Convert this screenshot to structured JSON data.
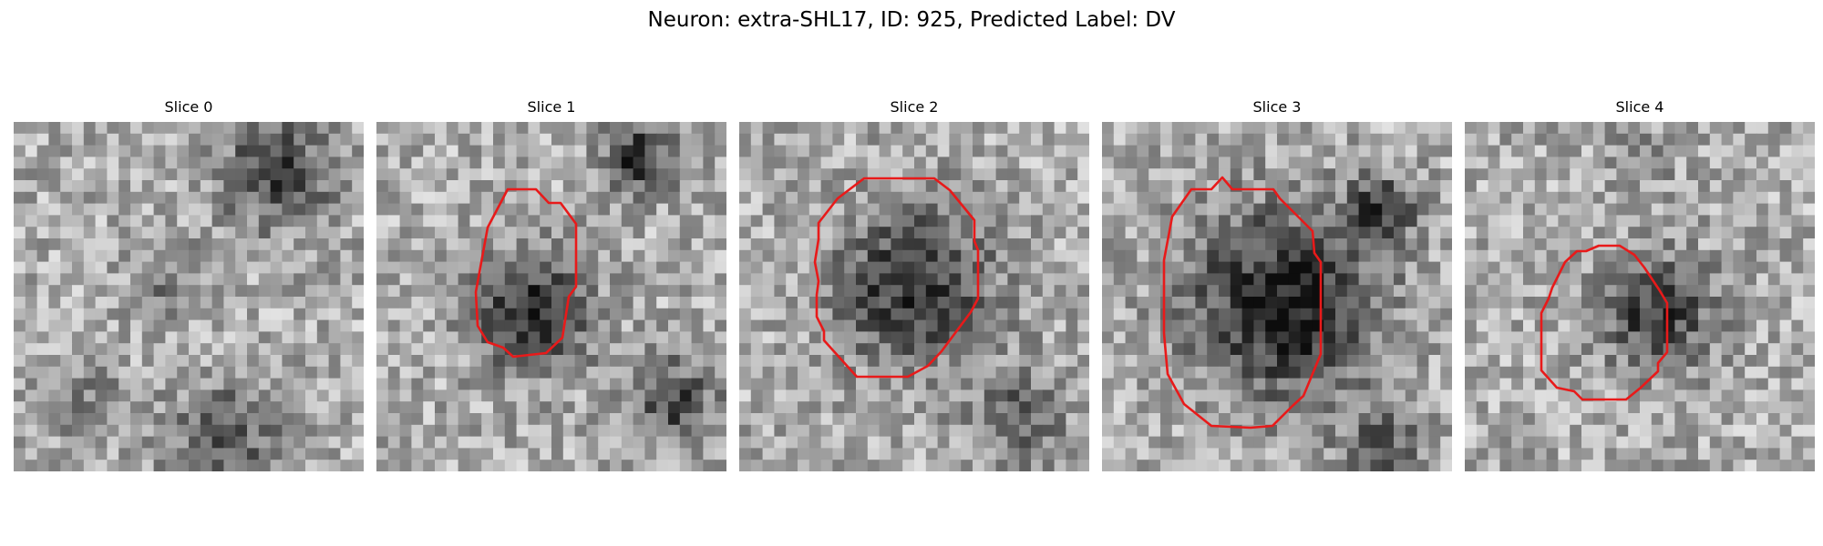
{
  "figure": {
    "title": "Neuron: extra-SHL17, ID: 925, Predicted Label: DV"
  },
  "panels": [
    {
      "title": "Slice 0",
      "has_contour": false,
      "seed": 11,
      "blobs": [
        [
          0.75,
          0.15,
          0.15,
          0.45
        ],
        [
          0.45,
          0.45,
          0.1,
          0.2
        ],
        [
          0.6,
          0.9,
          0.15,
          0.35
        ],
        [
          0.2,
          0.8,
          0.12,
          0.2
        ]
      ]
    },
    {
      "title": "Slice 1",
      "has_contour": true,
      "seed": 23,
      "blobs": [
        [
          0.45,
          0.55,
          0.16,
          0.55
        ],
        [
          0.75,
          0.1,
          0.1,
          0.5
        ],
        [
          0.85,
          0.8,
          0.12,
          0.4
        ]
      ]
    },
    {
      "title": "Slice 2",
      "has_contour": true,
      "seed": 37,
      "blobs": [
        [
          0.5,
          0.47,
          0.22,
          0.5
        ],
        [
          0.8,
          0.85,
          0.14,
          0.3
        ]
      ]
    },
    {
      "title": "Slice 3",
      "has_contour": true,
      "seed": 51,
      "blobs": [
        [
          0.52,
          0.52,
          0.26,
          0.6
        ],
        [
          0.8,
          0.25,
          0.1,
          0.4
        ],
        [
          0.8,
          0.95,
          0.12,
          0.35
        ]
      ]
    },
    {
      "title": "Slice 4",
      "has_contour": true,
      "seed": 67,
      "blobs": [
        [
          0.55,
          0.55,
          0.16,
          0.45
        ],
        [
          0.5,
          0.1,
          0.1,
          0.15
        ]
      ]
    }
  ],
  "contour_color": "#e81a1a"
}
